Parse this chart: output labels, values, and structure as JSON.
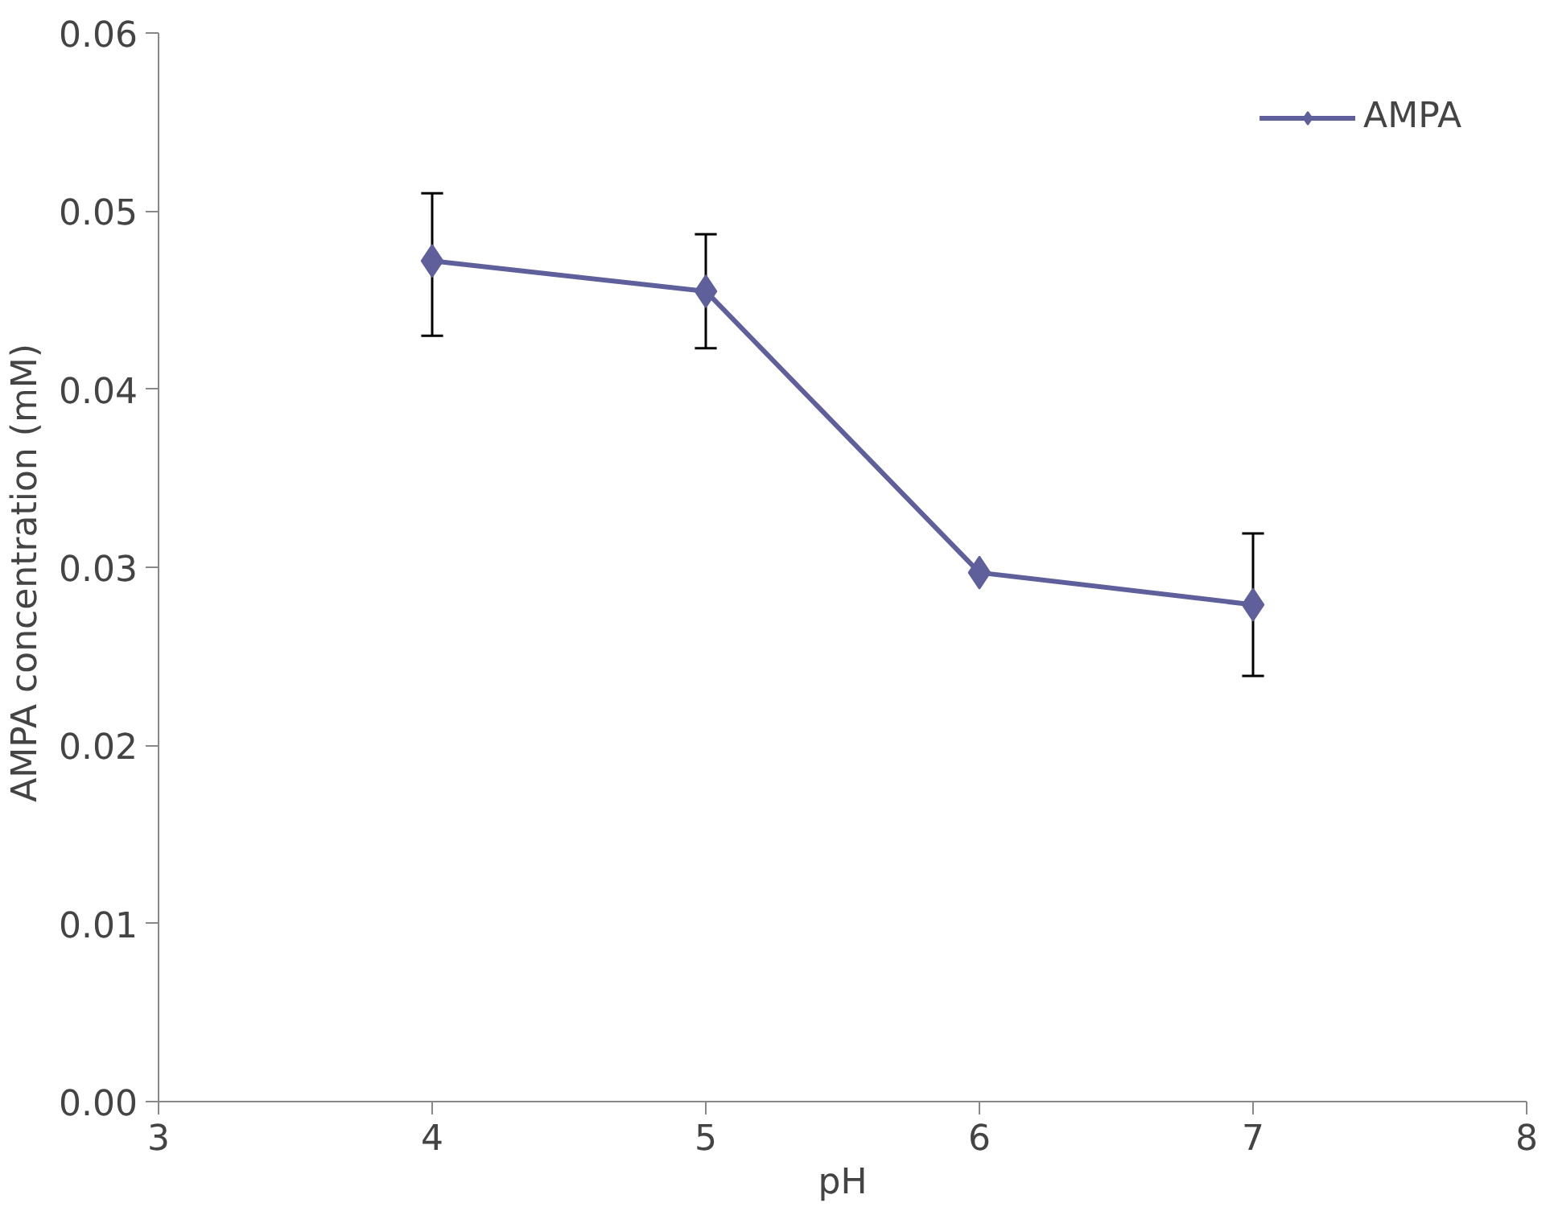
{
  "chart_data": {
    "type": "line",
    "xlabel": "pH",
    "ylabel": "AMPA concentration  (mM)",
    "x": [
      4,
      5,
      6,
      7
    ],
    "series": [
      {
        "name": "AMPA",
        "color": "#5f5f9b",
        "values": [
          0.0472,
          0.0455,
          0.0297,
          0.0279
        ],
        "errors": [
          [
            0.043,
            0.051
          ],
          [
            0.0423,
            0.0487
          ],
          null,
          [
            0.0239,
            0.0319
          ]
        ]
      }
    ],
    "xlim": [
      3,
      8
    ],
    "xticks": [
      3,
      4,
      5,
      6,
      7,
      8
    ],
    "ylim": [
      0,
      0.06
    ],
    "yticks": [
      {
        "value": 0,
        "label": "0.00"
      },
      {
        "value": 0.01,
        "label": "0.01"
      },
      {
        "value": 0.02,
        "label": "0.02"
      },
      {
        "value": 0.03,
        "label": "0.03"
      },
      {
        "value": 0.04,
        "label": "0.04"
      },
      {
        "value": 0.05,
        "label": "0.05"
      },
      {
        "value": 0.06,
        "label": "0.06"
      }
    ],
    "grid": false,
    "legend": "top right",
    "marker": "diamond",
    "line_style": "solid"
  }
}
